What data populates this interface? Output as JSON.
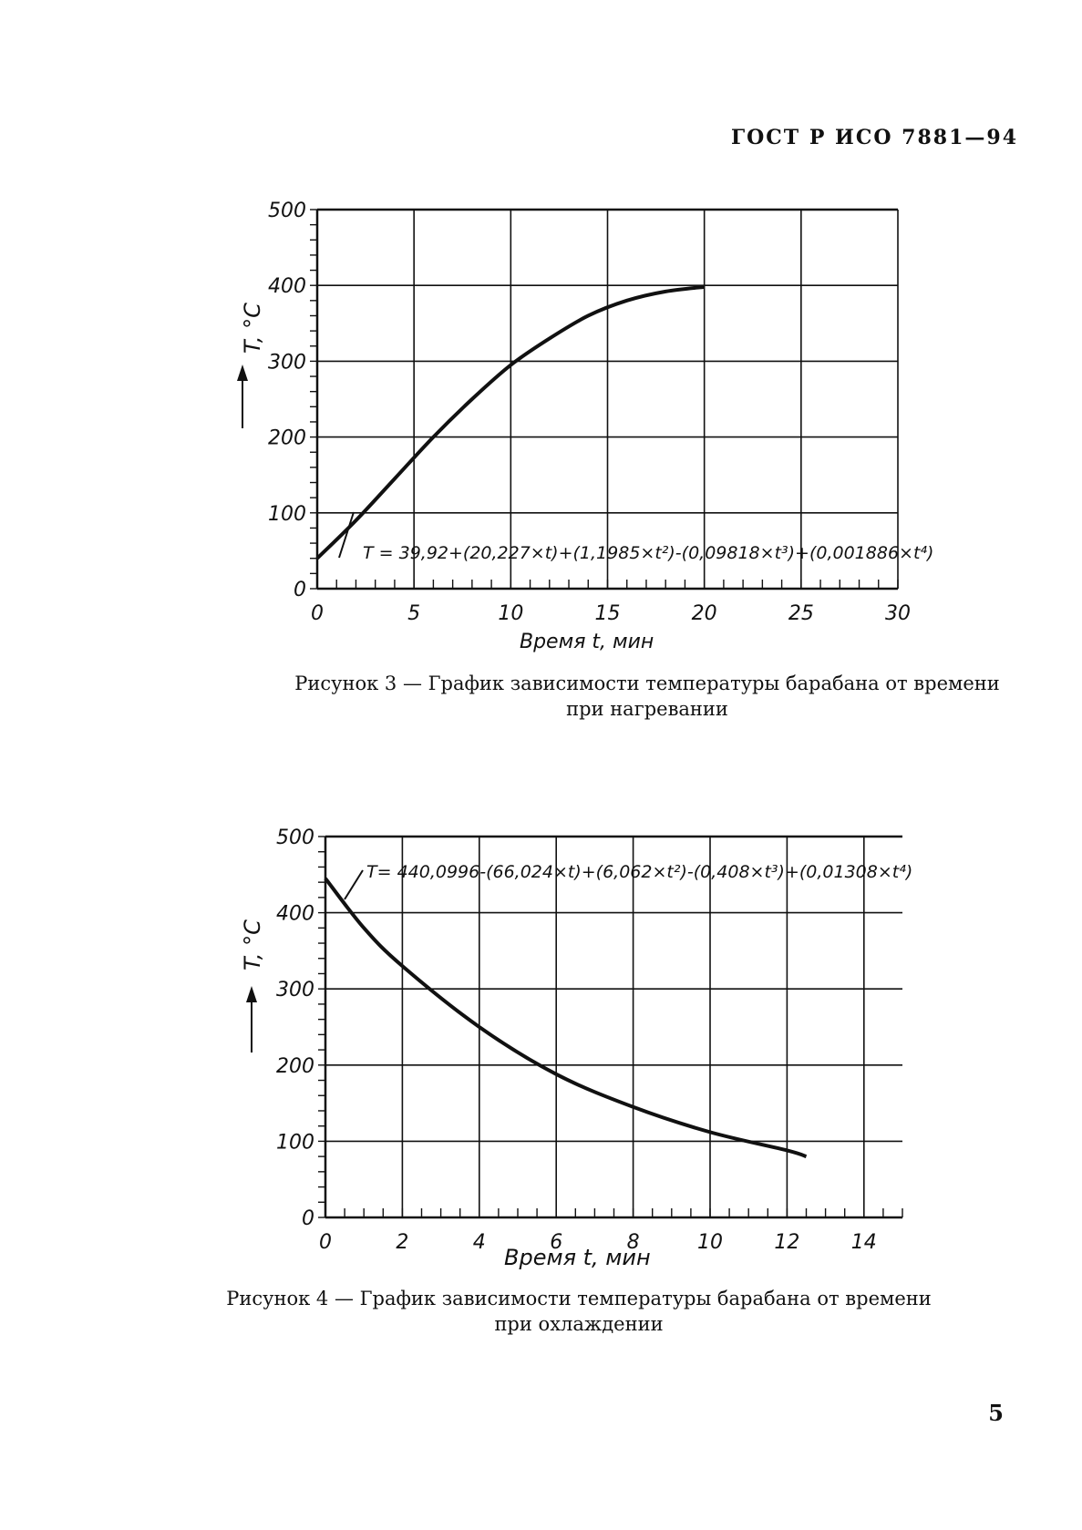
{
  "header": {
    "doc_id": "ГОСТ Р ИСО 7881—94"
  },
  "page_number": "5",
  "figures": [
    {
      "caption_line1": "Рисунок 3 — График зависимости температуры барабана от времени",
      "caption_line2": "при нагревании",
      "ylabel": "T, °C",
      "xlabel": "Время t, мин",
      "equation": "T = 39,92+(20,227×t)+(1,1985×t²)-(0,09818×t³)+(0,001886×t⁴)"
    },
    {
      "caption_line1": "Рисунок 4 — График зависимости температуры барабана от времени",
      "caption_line2": "при охлаждении",
      "ylabel": "T, °C",
      "xlabel": "Время t, мин",
      "equation": "T= 440,0996-(66,024×t)+(6,062×t²)-(0,408×t³)+(0,01308×t⁴)"
    }
  ],
  "chart_data": [
    {
      "type": "line",
      "xlabel": "Время t, мин",
      "ylabel": "T, °C",
      "xlim": [
        0,
        30
      ],
      "ylim": [
        0,
        500
      ],
      "xticks": [
        "0",
        "5",
        "10",
        "15",
        "20",
        "25",
        "30"
      ],
      "yticks": [
        "0",
        "100",
        "200",
        "300",
        "400",
        "500"
      ],
      "grid": true,
      "x": [
        0,
        2,
        4,
        6,
        8,
        10,
        12,
        14,
        16,
        18,
        20
      ],
      "series": [
        {
          "values": [
            40,
            90,
            145,
            200,
            250,
            295,
            330,
            360,
            380,
            392,
            398
          ]
        }
      ]
    },
    {
      "type": "line",
      "xlabel": "Время t, мин",
      "ylabel": "T, °C",
      "xlim": [
        0,
        15
      ],
      "ylim": [
        0,
        500
      ],
      "xticks": [
        "0",
        "2",
        "4",
        "6",
        "8",
        "10",
        "12",
        "14"
      ],
      "yticks": [
        "0",
        "100",
        "200",
        "300",
        "400",
        "500"
      ],
      "grid": true,
      "x": [
        0,
        1,
        2,
        4,
        6,
        8,
        10,
        12,
        12.5
      ],
      "series": [
        {
          "values": [
            445,
            380,
            330,
            250,
            188,
            145,
            112,
            88,
            80
          ]
        }
      ]
    }
  ]
}
